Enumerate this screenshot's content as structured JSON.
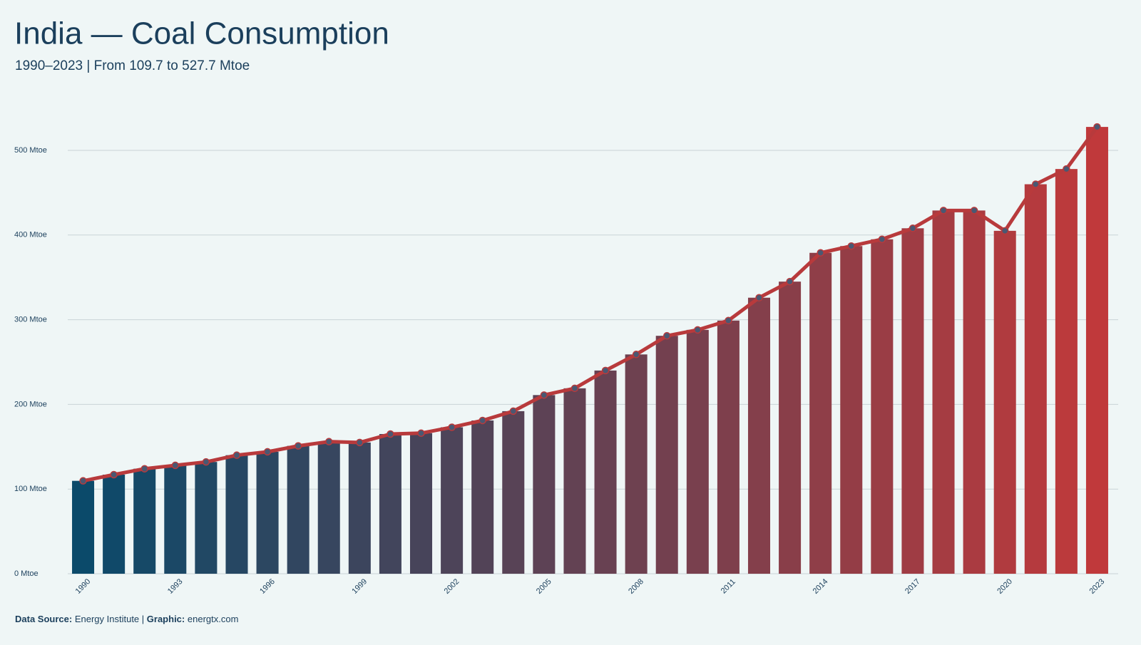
{
  "chart_data": {
    "type": "bar",
    "title": "India — Coal Consumption",
    "subtitle": "1990–2023 | From 109.7 to 527.7 Mtoe",
    "categories": [
      "1990",
      null,
      null,
      "1993",
      null,
      null,
      "1996",
      null,
      null,
      "1999",
      null,
      null,
      "2002",
      null,
      null,
      "2005",
      null,
      null,
      "2008",
      null,
      null,
      "2011",
      null,
      null,
      "2014",
      null,
      null,
      "2017",
      null,
      null,
      "2020",
      null,
      null,
      "2023"
    ],
    "values": [
      109.7,
      117,
      124,
      128,
      132,
      140,
      144,
      151,
      156,
      155,
      165,
      166,
      173,
      181,
      192,
      211,
      219,
      240,
      259,
      281,
      288,
      299,
      326,
      345,
      379,
      387,
      395,
      408,
      429,
      429,
      405,
      460,
      478,
      527.7
    ],
    "color_start": "#0b4a6a",
    "color_end": "#c0393b",
    "line_color": "#b83a3c",
    "ylim": [
      0,
      550
    ],
    "yticks": [
      {
        "value": 0,
        "label": "0 Mtoe"
      },
      {
        "value": 100,
        "label": "100 Mtoe"
      },
      {
        "value": 200,
        "label": "200 Mtoe"
      },
      {
        "value": 300,
        "label": "300 Mtoe"
      },
      {
        "value": 400,
        "label": "400 Mtoe"
      },
      {
        "value": 500,
        "label": "500 Mtoe"
      }
    ],
    "grid": true,
    "footer": {
      "source_label": "Data Source:",
      "source": "Energy Institute |",
      "graphic_label": "Graphic:",
      "graphic": "energtx.com"
    }
  }
}
